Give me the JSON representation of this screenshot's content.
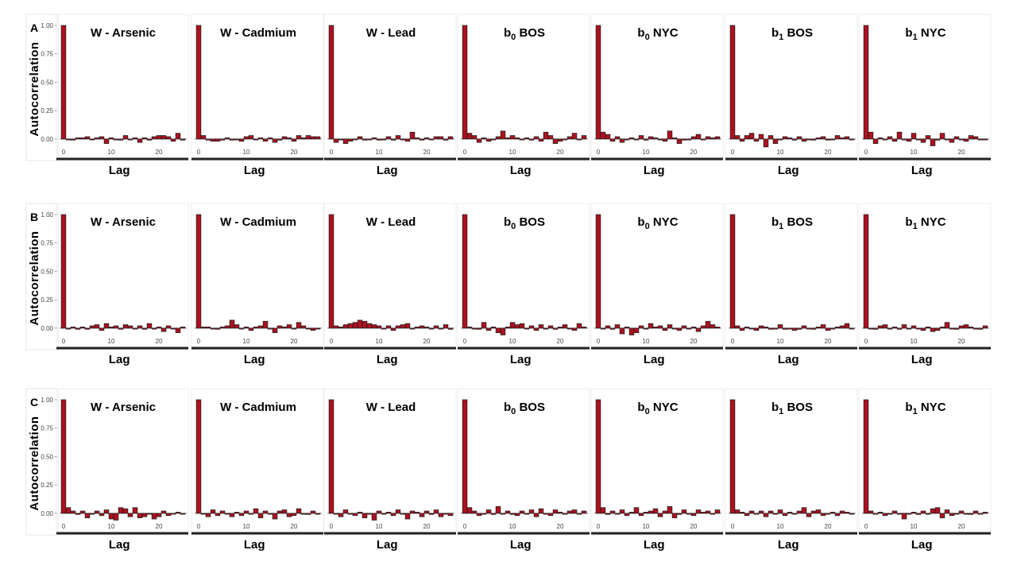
{
  "colors": {
    "bar": "#b0101e",
    "axis": "#222222"
  },
  "chart_data": {
    "type": "bar",
    "description_units": "lag vs autocorrelation",
    "ylabel": "Autocorrelation",
    "xlabel": "Lag",
    "ylim": [
      -0.12,
      1.0
    ],
    "yticks": [
      "1.00",
      "0.75",
      "0.50",
      "0.25",
      "0.00"
    ],
    "ytick_values": [
      1.0,
      0.75,
      0.5,
      0.25,
      0.0
    ],
    "xticks": [
      "0",
      "10",
      "20"
    ],
    "xtick_values": [
      0,
      10,
      20
    ],
    "lags": [
      0,
      1,
      2,
      3,
      4,
      5,
      6,
      7,
      8,
      9,
      10,
      11,
      12,
      13,
      14,
      15,
      16,
      17,
      18,
      19,
      20,
      21,
      22,
      23,
      24,
      25
    ],
    "panel_titles": [
      {
        "main": "W - Arsenic",
        "sub": "",
        "suffix": ""
      },
      {
        "main": "W - Cadmium",
        "sub": "",
        "suffix": ""
      },
      {
        "main": "W - Lead",
        "sub": "",
        "suffix": ""
      },
      {
        "main": "b",
        "sub": "0",
        "suffix": " BOS"
      },
      {
        "main": "b",
        "sub": "0",
        "suffix": " NYC"
      },
      {
        "main": "b",
        "sub": "1",
        "suffix": " BOS"
      },
      {
        "main": "b",
        "sub": "1",
        "suffix": " NYC"
      }
    ],
    "rows": [
      {
        "label": "A",
        "panels": [
          [
            1.0,
            0.0,
            -0.01,
            0.01,
            0.01,
            0.02,
            0.0,
            0.01,
            0.02,
            -0.04,
            0.01,
            0.0,
            -0.01,
            0.03,
            0.0,
            0.01,
            -0.03,
            0.01,
            -0.01,
            0.02,
            0.03,
            0.03,
            0.02,
            -0.02,
            0.05,
            -0.01
          ],
          [
            1.0,
            0.03,
            -0.01,
            -0.02,
            -0.02,
            -0.01,
            0.01,
            -0.01,
            0.0,
            -0.02,
            0.02,
            0.03,
            0.0,
            0.01,
            -0.02,
            0.01,
            -0.03,
            -0.01,
            0.02,
            0.01,
            -0.02,
            0.03,
            0.01,
            0.03,
            0.02,
            0.02
          ],
          [
            1.0,
            -0.03,
            0.0,
            -0.04,
            -0.02,
            0.0,
            0.02,
            -0.01,
            0.0,
            0.01,
            -0.01,
            0.0,
            0.02,
            -0.01,
            0.03,
            0.0,
            -0.02,
            0.06,
            0.01,
            -0.01,
            0.01,
            0.0,
            0.02,
            0.02,
            -0.01,
            0.02
          ],
          [
            1.0,
            0.05,
            0.03,
            -0.03,
            0.01,
            -0.02,
            0.0,
            0.02,
            0.07,
            0.01,
            0.03,
            0.01,
            0.0,
            0.01,
            -0.01,
            0.02,
            -0.02,
            0.06,
            0.03,
            -0.04,
            -0.02,
            0.0,
            0.02,
            0.05,
            0.0,
            0.03
          ],
          [
            1.0,
            0.06,
            0.04,
            -0.02,
            0.02,
            -0.03,
            0.0,
            0.01,
            0.0,
            0.03,
            -0.01,
            0.02,
            0.01,
            0.0,
            -0.02,
            0.07,
            0.01,
            -0.04,
            -0.01,
            0.0,
            0.02,
            0.04,
            0.0,
            0.02,
            0.01,
            0.02
          ],
          [
            1.0,
            0.03,
            -0.02,
            0.03,
            0.05,
            -0.02,
            0.04,
            -0.07,
            0.03,
            -0.04,
            0.0,
            0.02,
            0.01,
            -0.01,
            0.02,
            -0.02,
            0.0,
            -0.01,
            0.01,
            0.02,
            -0.01,
            0.0,
            0.03,
            0.01,
            0.02,
            0.0
          ],
          [
            1.0,
            0.06,
            -0.04,
            0.01,
            0.0,
            0.02,
            -0.02,
            0.06,
            0.0,
            -0.02,
            0.05,
            0.0,
            -0.03,
            0.03,
            -0.06,
            -0.01,
            0.05,
            0.0,
            -0.03,
            0.02,
            0.0,
            -0.02,
            0.03,
            0.02,
            0.0,
            0.0
          ]
        ]
      },
      {
        "label": "B",
        "panels": [
          [
            1.0,
            0.0,
            0.01,
            -0.01,
            0.01,
            -0.01,
            0.02,
            0.03,
            -0.02,
            0.04,
            0.01,
            0.02,
            -0.01,
            0.03,
            0.02,
            0.0,
            0.02,
            -0.01,
            0.04,
            0.0,
            0.01,
            -0.03,
            0.02,
            0.0,
            -0.04,
            0.01
          ],
          [
            1.0,
            0.01,
            0.01,
            0.0,
            -0.01,
            0.01,
            0.02,
            0.07,
            0.03,
            0.0,
            0.01,
            -0.02,
            0.01,
            0.02,
            0.06,
            0.0,
            -0.04,
            0.02,
            0.01,
            0.03,
            0.0,
            0.05,
            0.02,
            0.0,
            -0.02,
            0.0
          ],
          [
            1.0,
            0.02,
            0.01,
            0.03,
            0.04,
            0.05,
            0.07,
            0.06,
            0.04,
            0.03,
            0.02,
            0.0,
            0.02,
            -0.02,
            0.02,
            0.03,
            0.04,
            0.0,
            0.01,
            0.02,
            0.01,
            0.0,
            0.02,
            0.0,
            0.03,
            -0.01
          ],
          [
            1.0,
            0.01,
            0.0,
            -0.01,
            0.05,
            -0.02,
            0.01,
            -0.04,
            -0.06,
            0.01,
            0.05,
            0.03,
            0.04,
            0.0,
            0.02,
            -0.02,
            0.03,
            0.0,
            0.02,
            -0.01,
            0.01,
            0.03,
            0.0,
            -0.02,
            0.04,
            0.01
          ],
          [
            1.0,
            0.0,
            0.02,
            -0.01,
            0.03,
            -0.05,
            0.01,
            -0.06,
            -0.04,
            0.02,
            0.0,
            0.04,
            0.01,
            0.02,
            -0.02,
            0.03,
            0.0,
            -0.02,
            0.02,
            0.0,
            0.01,
            -0.03,
            0.02,
            0.06,
            0.03,
            0.01
          ],
          [
            1.0,
            0.02,
            -0.02,
            0.01,
            0.0,
            -0.02,
            0.02,
            0.01,
            -0.01,
            0.0,
            0.03,
            -0.01,
            0.0,
            -0.02,
            -0.01,
            0.02,
            0.0,
            -0.01,
            0.01,
            0.03,
            -0.02,
            0.0,
            0.01,
            0.02,
            0.04,
            0.0
          ],
          [
            1.0,
            0.0,
            -0.01,
            0.02,
            0.03,
            0.0,
            0.01,
            -0.01,
            0.03,
            0.0,
            0.02,
            0.0,
            -0.02,
            0.01,
            -0.03,
            -0.02,
            0.01,
            0.05,
            0.0,
            -0.01,
            0.02,
            0.03,
            0.01,
            0.0,
            -0.01,
            0.02
          ]
        ]
      },
      {
        "label": "C",
        "panels": [
          [
            1.0,
            0.05,
            0.02,
            -0.01,
            0.02,
            -0.04,
            0.0,
            0.02,
            -0.02,
            0.03,
            -0.05,
            -0.06,
            0.05,
            0.04,
            -0.03,
            0.05,
            -0.04,
            -0.03,
            0.0,
            -0.05,
            -0.03,
            0.02,
            -0.02,
            0.0,
            0.01,
            0.0
          ],
          [
            1.0,
            0.0,
            -0.03,
            0.03,
            -0.02,
            0.02,
            0.0,
            -0.03,
            0.01,
            -0.02,
            0.02,
            0.0,
            0.04,
            -0.04,
            0.02,
            0.0,
            -0.05,
            0.02,
            0.03,
            -0.03,
            -0.02,
            0.04,
            0.0,
            -0.01,
            0.02,
            0.0
          ],
          [
            1.0,
            0.0,
            -0.03,
            0.03,
            0.0,
            -0.02,
            0.01,
            -0.04,
            0.0,
            -0.06,
            0.02,
            0.0,
            0.01,
            -0.02,
            0.03,
            0.0,
            -0.05,
            0.02,
            0.01,
            -0.03,
            0.02,
            -0.01,
            0.03,
            -0.03,
            0.0,
            -0.02
          ],
          [
            1.0,
            0.05,
            0.02,
            -0.02,
            0.0,
            0.03,
            -0.01,
            0.06,
            0.0,
            0.02,
            -0.01,
            -0.02,
            0.02,
            0.0,
            0.03,
            -0.03,
            0.04,
            0.0,
            -0.02,
            0.03,
            0.01,
            0.0,
            0.02,
            0.03,
            0.0,
            0.02
          ],
          [
            1.0,
            0.05,
            -0.01,
            0.02,
            0.0,
            0.03,
            -0.02,
            0.01,
            0.05,
            -0.02,
            0.01,
            0.02,
            0.04,
            -0.03,
            0.02,
            0.06,
            -0.04,
            -0.01,
            0.03,
            0.0,
            -0.02,
            0.03,
            0.01,
            0.02,
            0.0,
            0.03
          ],
          [
            1.0,
            0.03,
            0.01,
            -0.02,
            0.02,
            0.0,
            0.02,
            -0.03,
            0.02,
            0.0,
            0.03,
            -0.02,
            0.01,
            0.0,
            0.02,
            0.05,
            -0.03,
            0.02,
            0.03,
            -0.02,
            0.0,
            0.01,
            -0.02,
            0.02,
            0.01,
            0.0
          ],
          [
            1.0,
            0.02,
            0.0,
            0.01,
            -0.02,
            0.0,
            0.02,
            0.0,
            -0.05,
            0.0,
            0.01,
            -0.01,
            0.02,
            0.0,
            0.04,
            0.05,
            -0.04,
            0.03,
            -0.02,
            0.0,
            0.02,
            0.0,
            -0.01,
            0.02,
            0.0,
            0.01
          ]
        ]
      }
    ]
  }
}
